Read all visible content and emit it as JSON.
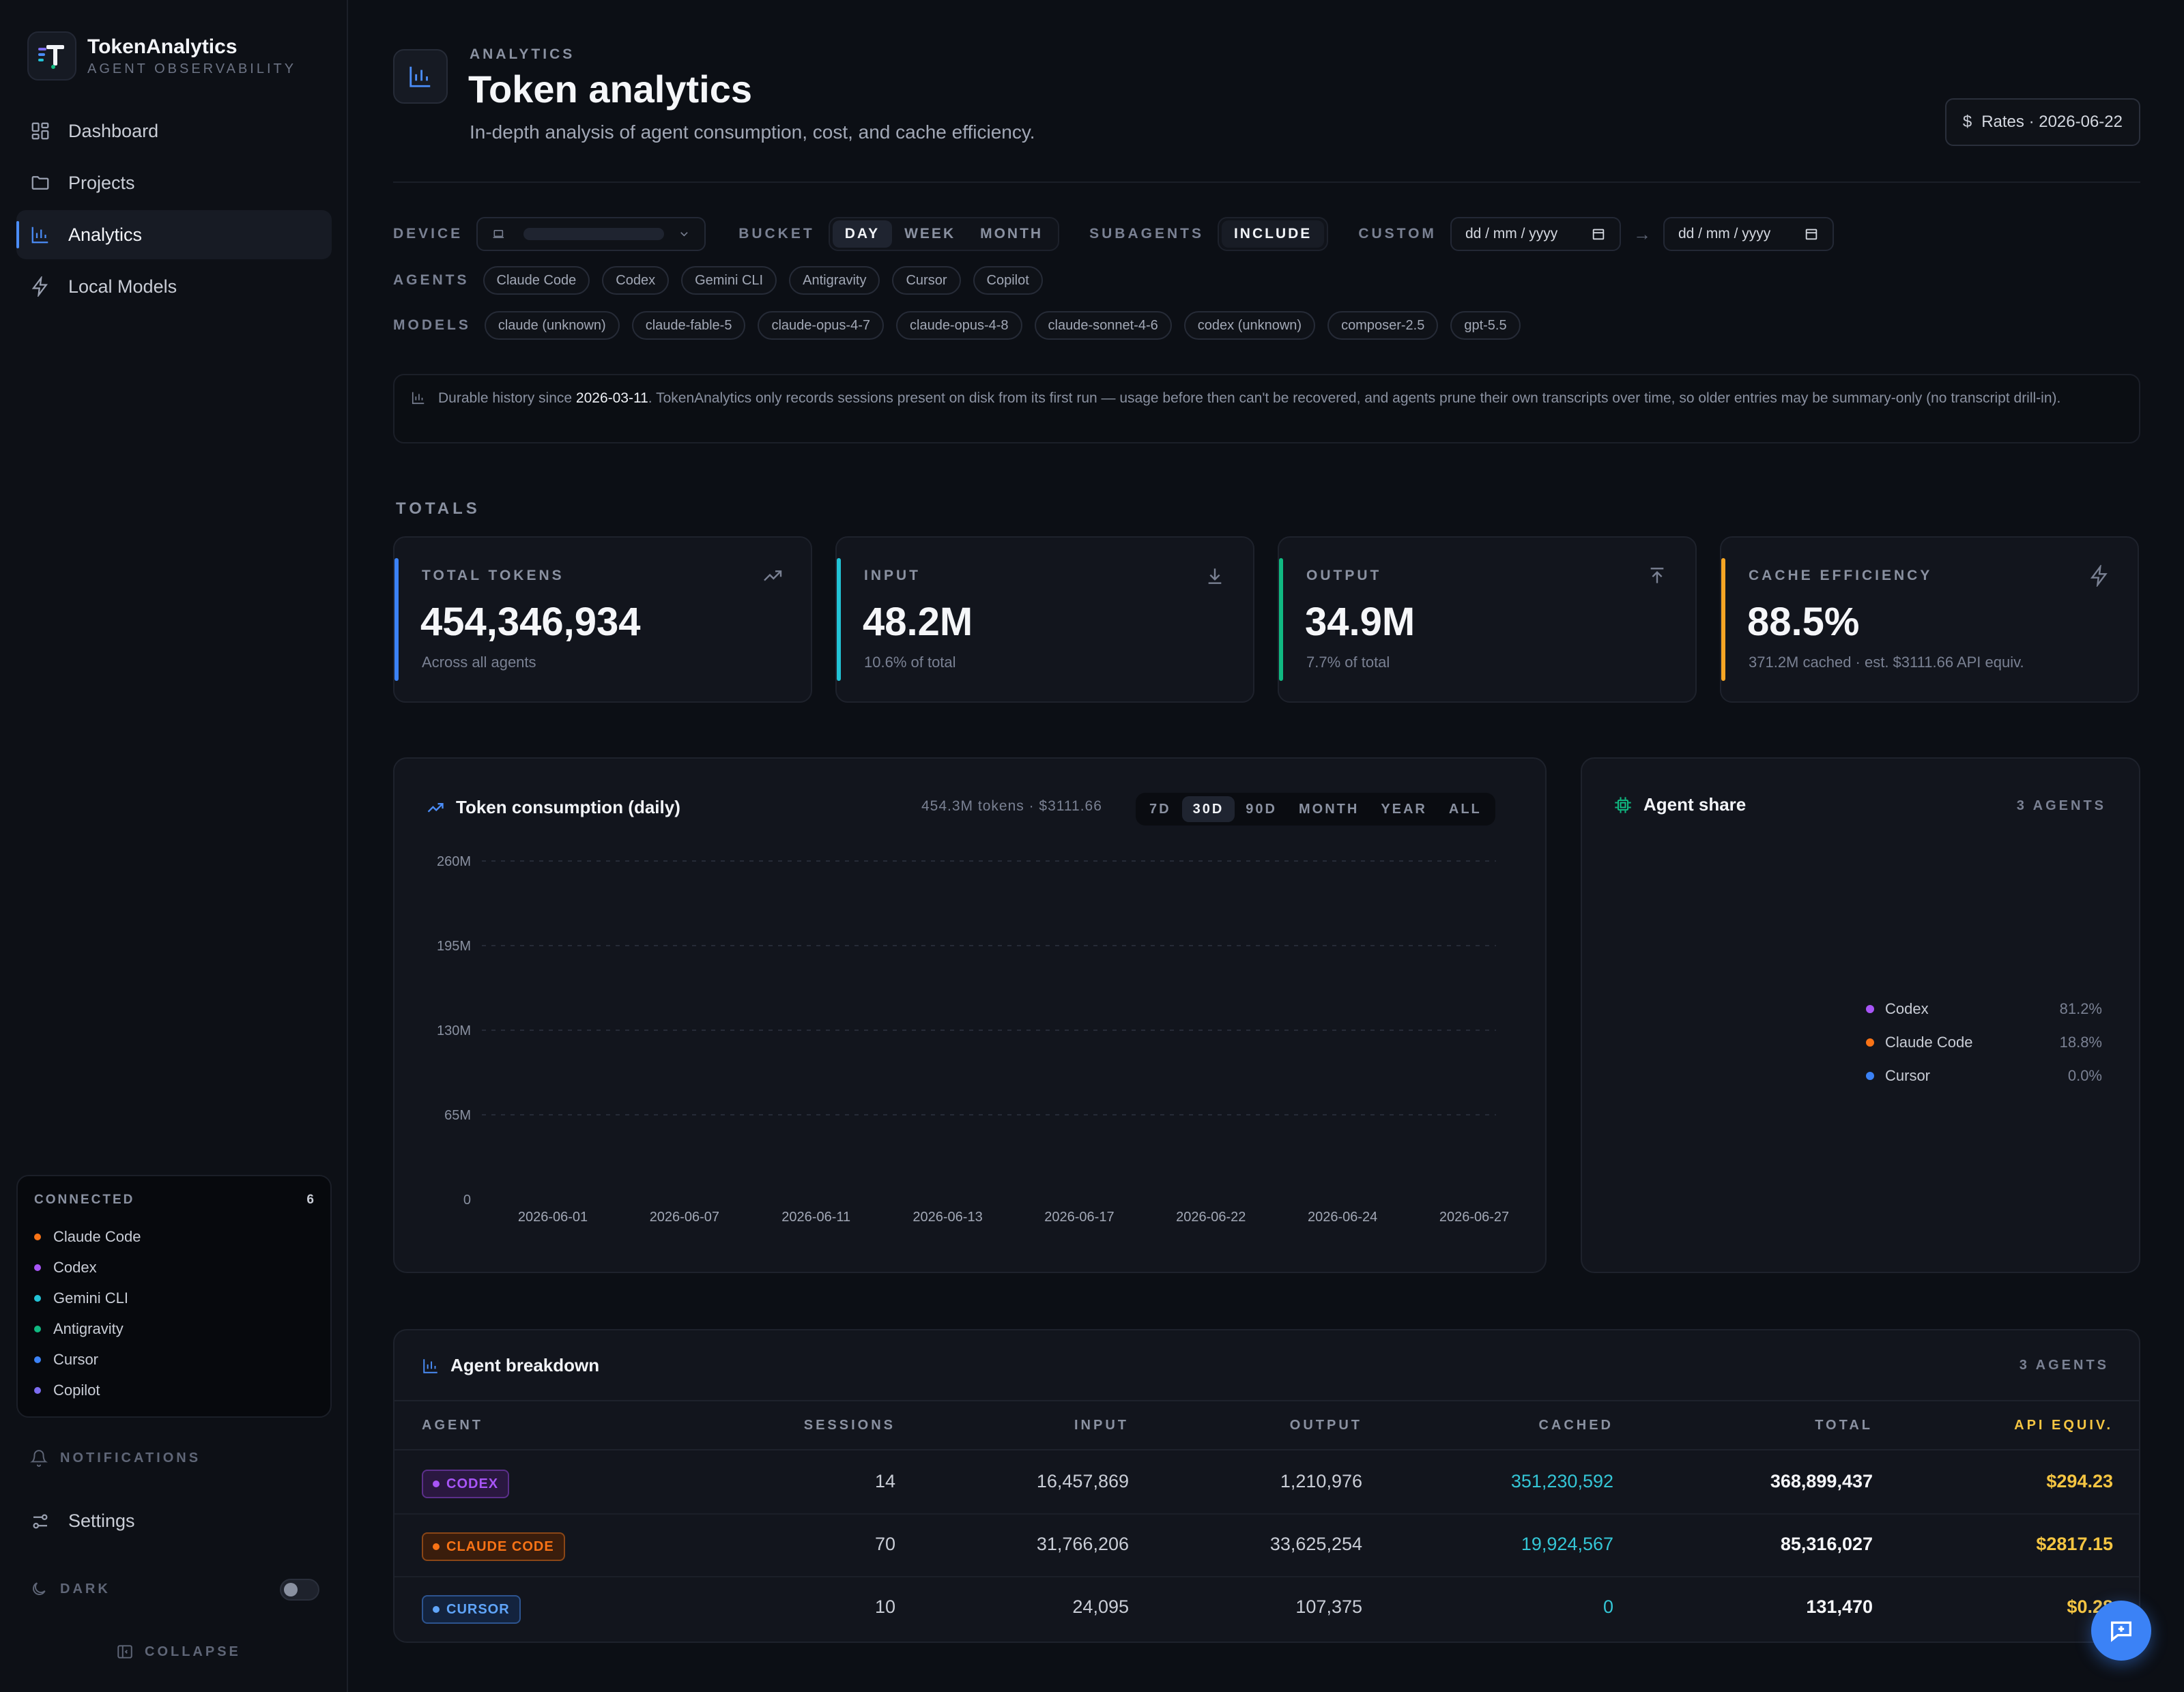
{
  "brand": {
    "name": "TokenAnalytics",
    "subtitle": "AGENT OBSERVABILITY"
  },
  "nav": [
    {
      "label": "Dashboard",
      "icon": "dashboard-icon",
      "active": false
    },
    {
      "label": "Projects",
      "icon": "folder-icon",
      "active": false
    },
    {
      "label": "Analytics",
      "icon": "bar-chart-icon",
      "active": true
    },
    {
      "label": "Local Models",
      "icon": "bolt-icon",
      "active": false
    }
  ],
  "connected": {
    "label": "CONNECTED",
    "count": "6",
    "items": [
      {
        "name": "Claude Code",
        "color": "#f97316"
      },
      {
        "name": "Codex",
        "color": "#a855f7"
      },
      {
        "name": "Gemini CLI",
        "color": "#22c3d6"
      },
      {
        "name": "Antigravity",
        "color": "#10b981"
      },
      {
        "name": "Cursor",
        "color": "#3b82f6"
      },
      {
        "name": "Copilot",
        "color": "#7c6cf0"
      }
    ]
  },
  "sidebar_bottom": {
    "notifications": "NOTIFICATIONS",
    "settings": "Settings",
    "theme": "DARK",
    "collapse": "COLLAPSE"
  },
  "header": {
    "eyebrow": "ANALYTICS",
    "title": "Token analytics",
    "subtitle": "In-depth analysis of agent consumption, cost, and cache efficiency.",
    "rates": "Rates · 2026-06-22"
  },
  "filters": {
    "device_label": "DEVICE",
    "bucket_label": "BUCKET",
    "bucket_options": [
      "DAY",
      "WEEK",
      "MONTH"
    ],
    "bucket_selected": "DAY",
    "subagents_label": "SUBAGENTS",
    "subagents_value": "INCLUDE",
    "custom_label": "CUSTOM",
    "date_from_placeholder": "dd / mm / yyyy",
    "date_to_placeholder": "dd / mm / yyyy",
    "arrow": "→",
    "agents_label": "AGENTS",
    "agents": [
      "Claude Code",
      "Codex",
      "Gemini CLI",
      "Antigravity",
      "Cursor",
      "Copilot"
    ],
    "models_label": "MODELS",
    "models": [
      "claude (unknown)",
      "claude-fable-5",
      "claude-opus-4-7",
      "claude-opus-4-8",
      "claude-sonnet-4-6",
      "codex (unknown)",
      "composer-2.5",
      "gpt-5.5"
    ]
  },
  "notice": {
    "prefix": "Durable history since ",
    "date": "2026-03-11",
    "suffix": ". TokenAnalytics only records sessions present on disk from its first run — usage before then can't be recovered, and agents prune their own transcripts over time, so older entries may be summary-only (no transcript drill-in)."
  },
  "totals": {
    "label": "TOTALS",
    "cards": [
      {
        "label": "TOTAL TOKENS",
        "value": "454,346,934",
        "note": "Across all agents",
        "accent": "#3b82f6",
        "icon": "trend-up-icon"
      },
      {
        "label": "INPUT",
        "value": "48.2M",
        "note": "10.6% of total",
        "accent": "#22c3d6",
        "icon": "download-icon"
      },
      {
        "label": "OUTPUT",
        "value": "34.9M",
        "note": "7.7% of total",
        "accent": "#10b981",
        "icon": "upload-icon"
      },
      {
        "label": "CACHE EFFICIENCY",
        "value": "88.5%",
        "note": "371.2M cached · est. $3111.66 API equiv.",
        "accent": "#f5a524",
        "icon": "bolt-icon"
      }
    ]
  },
  "consumption": {
    "title": "Token consumption (daily)",
    "meta": "454.3M tokens · $3111.66",
    "ranges": [
      "7D",
      "30D",
      "90D",
      "MONTH",
      "YEAR",
      "ALL"
    ],
    "range_selected": "30D"
  },
  "chart_data": {
    "type": "bar",
    "title": "Token consumption (daily)",
    "xlabel": "",
    "ylabel": "",
    "ylim": [
      0,
      260000000
    ],
    "y_ticks": [
      "0",
      "65M",
      "130M",
      "195M",
      "260M"
    ],
    "x_ticks": [
      "2026-06-01",
      "2026-06-07",
      "2026-06-11",
      "2026-06-13",
      "2026-06-17",
      "2026-06-22",
      "2026-06-24",
      "2026-06-27"
    ],
    "grid": true
  },
  "share": {
    "title": "Agent share",
    "count": "3 AGENTS",
    "items": [
      {
        "name": "Codex",
        "pct": "81.2%",
        "color": "#a855f7"
      },
      {
        "name": "Claude Code",
        "pct": "18.8%",
        "color": "#f97316"
      },
      {
        "name": "Cursor",
        "pct": "0.0%",
        "color": "#3b82f6"
      }
    ]
  },
  "breakdown": {
    "title": "Agent breakdown",
    "count": "3 AGENTS",
    "columns": [
      "AGENT",
      "SESSIONS",
      "INPUT",
      "OUTPUT",
      "CACHED",
      "TOTAL",
      "API EQUIV."
    ],
    "rows": [
      {
        "agent": "CODEX",
        "color": "#a855f7",
        "bg": "#2a1840",
        "border": "#5b2f8a",
        "sessions": "14",
        "input": "16,457,869",
        "output": "1,210,976",
        "cached": "351,230,592",
        "total": "368,899,437",
        "api": "$294.23"
      },
      {
        "agent": "CLAUDE CODE",
        "color": "#f97316",
        "bg": "#3a1d0c",
        "border": "#8a4616",
        "sessions": "70",
        "input": "31,766,206",
        "output": "33,625,254",
        "cached": "19,924,567",
        "total": "85,316,027",
        "api": "$2817.15"
      },
      {
        "agent": "CURSOR",
        "color": "#60a5fa",
        "bg": "#13233e",
        "border": "#2d5490",
        "sessions": "10",
        "input": "24,095",
        "output": "107,375",
        "cached": "0",
        "total": "131,470",
        "api": "$0.28"
      }
    ]
  }
}
